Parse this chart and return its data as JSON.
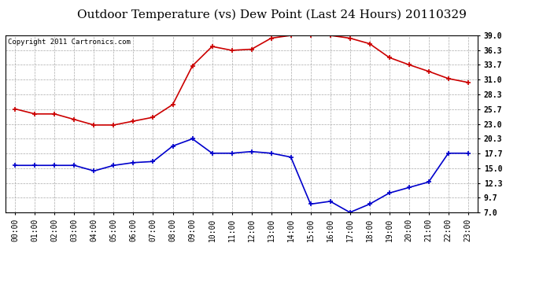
{
  "title": "Outdoor Temperature (vs) Dew Point (Last 24 Hours) 20110329",
  "copyright": "Copyright 2011 Cartronics.com",
  "x_labels": [
    "00:00",
    "01:00",
    "02:00",
    "03:00",
    "04:00",
    "05:00",
    "06:00",
    "07:00",
    "08:00",
    "09:00",
    "10:00",
    "11:00",
    "12:00",
    "13:00",
    "14:00",
    "15:00",
    "16:00",
    "17:00",
    "18:00",
    "19:00",
    "20:00",
    "21:00",
    "22:00",
    "23:00"
  ],
  "temp_data": [
    25.7,
    24.8,
    24.8,
    23.8,
    22.8,
    22.8,
    23.5,
    24.2,
    26.5,
    33.5,
    37.0,
    36.3,
    36.5,
    38.5,
    39.0,
    39.0,
    39.0,
    38.5,
    37.5,
    35.0,
    33.7,
    32.5,
    31.2,
    30.5
  ],
  "dew_data": [
    15.5,
    15.5,
    15.5,
    15.5,
    14.5,
    15.5,
    16.0,
    16.2,
    19.0,
    20.3,
    17.7,
    17.7,
    18.0,
    17.7,
    17.0,
    8.5,
    9.0,
    7.0,
    8.5,
    10.5,
    11.5,
    12.5,
    17.7,
    17.7
  ],
  "temp_color": "#cc0000",
  "dew_color": "#0000cc",
  "bg_color": "#ffffff",
  "plot_bg_color": "#ffffff",
  "grid_color": "#aaaaaa",
  "ylim": [
    7.0,
    39.0
  ],
  "yticks": [
    7.0,
    9.7,
    12.3,
    15.0,
    17.7,
    20.3,
    23.0,
    25.7,
    28.3,
    31.0,
    33.7,
    36.3,
    39.0
  ],
  "title_fontsize": 11,
  "copyright_fontsize": 6.5,
  "tick_fontsize": 7
}
